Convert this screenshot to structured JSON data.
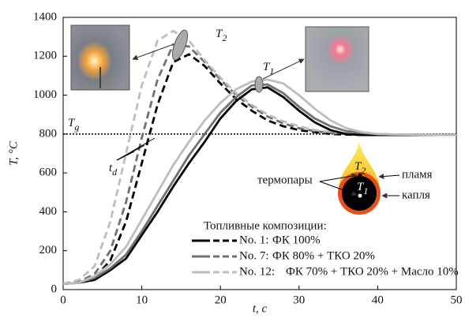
{
  "chart_data": {
    "type": "line",
    "xlabel": "t, c",
    "ylabel": "T, °C",
    "x": [
      0,
      2,
      4,
      6,
      8,
      10,
      12,
      14,
      16,
      18,
      20,
      22,
      24,
      26,
      28,
      30,
      32,
      34,
      36,
      38,
      40,
      42,
      44,
      46,
      48,
      50
    ],
    "xlim": [
      0,
      50
    ],
    "xticks": [
      0,
      10,
      20,
      30,
      40,
      50
    ],
    "ylim": [
      0,
      1400
    ],
    "yticks": [
      0,
      200,
      400,
      600,
      800,
      1000,
      1200,
      1400
    ],
    "legend_title": "Топливные композиции:",
    "series": [
      {
        "name": "No. 1:",
        "composition": "ФК 100%",
        "color": "#000000",
        "values": [
          30,
          35,
          50,
          100,
          160,
          280,
          400,
          530,
          650,
          760,
          880,
          970,
          1030,
          1040,
          990,
          920,
          860,
          820,
          800,
          795,
          795,
          795,
          795,
          795,
          795,
          795
        ],
        "dashed_values": [
          30,
          35,
          60,
          150,
          350,
          650,
          950,
          1170,
          1210,
          1150,
          1060,
          980,
          920,
          870,
          840,
          820,
          810,
          800,
          797,
          795,
          795,
          795,
          795,
          795,
          795,
          795
        ]
      },
      {
        "name": "No. 7:",
        "composition": "ФК 80% + ТКО 20%",
        "color": "#707070",
        "values": [
          30,
          35,
          60,
          110,
          180,
          300,
          430,
          560,
          690,
          800,
          910,
          990,
          1050,
          1055,
          1010,
          940,
          880,
          840,
          815,
          805,
          800,
          798,
          797,
          796,
          795,
          795
        ],
        "dashed_values": [
          30,
          40,
          80,
          200,
          450,
          780,
          1080,
          1260,
          1250,
          1170,
          1080,
          1000,
          940,
          890,
          855,
          830,
          815,
          805,
          800,
          797,
          796,
          795,
          795,
          795,
          795,
          795
        ]
      },
      {
        "name": "No. 12:",
        "composition": "ФК 70% + ТКО 20% + Масло 10%",
        "color": "#bdbdbd",
        "values": [
          30,
          35,
          70,
          130,
          220,
          360,
          500,
          640,
          760,
          870,
          960,
          1030,
          1070,
          1080,
          1060,
          1000,
          930,
          870,
          830,
          810,
          800,
          798,
          797,
          796,
          795,
          795
        ],
        "dashed_values": [
          30,
          50,
          120,
          350,
          700,
          1050,
          1280,
          1330,
          1280,
          1180,
          1090,
          1010,
          950,
          900,
          865,
          840,
          820,
          810,
          805,
          800,
          797,
          796,
          795,
          795,
          795,
          795
        ]
      }
    ],
    "tg": 800,
    "annotations": {
      "tg": {
        "main": "T",
        "sub": "g"
      },
      "t1": {
        "main": "T",
        "sub": "1"
      },
      "t2": {
        "main": "T",
        "sub": "2"
      },
      "td": {
        "main": "t",
        "sub": "d"
      }
    },
    "inset": {
      "thermocouples": "термопары",
      "flame": "пламя",
      "droplet": "капля",
      "t1": {
        "main": "T",
        "sub": "1"
      },
      "t2": {
        "main": "T",
        "sub": "2"
      }
    }
  }
}
